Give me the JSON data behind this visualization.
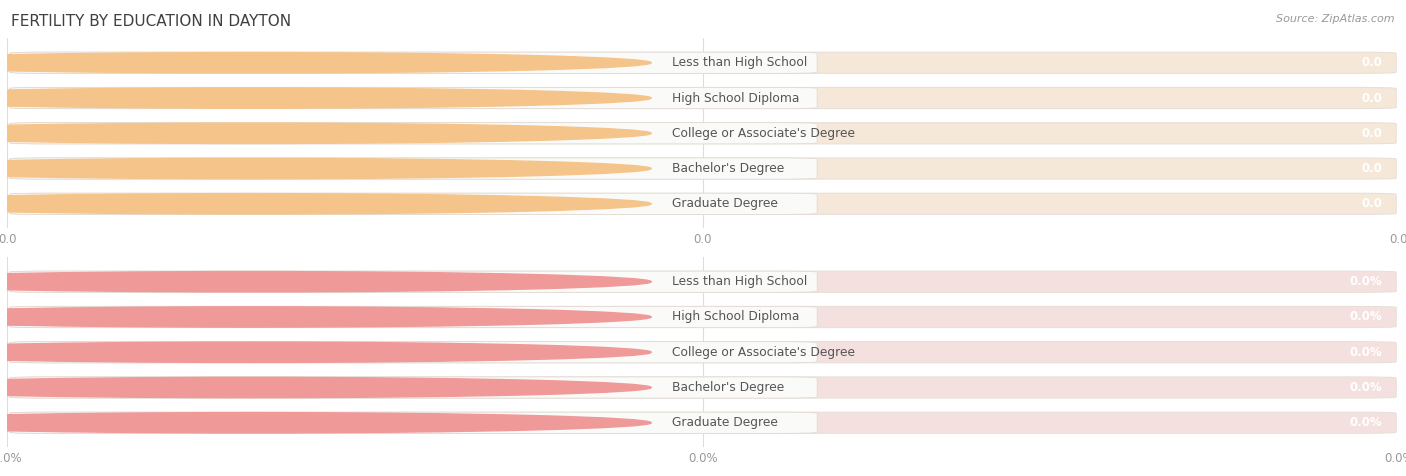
{
  "title": "FERTILITY BY EDUCATION IN DAYTON",
  "source": "Source: ZipAtlas.com",
  "categories": [
    "Less than High School",
    "High School Diploma",
    "College or Associate's Degree",
    "Bachelor's Degree",
    "Graduate Degree"
  ],
  "values_top": [
    0.0,
    0.0,
    0.0,
    0.0,
    0.0
  ],
  "values_bottom": [
    0.0,
    0.0,
    0.0,
    0.0,
    0.0
  ],
  "bar_color_top": "#F5C48A",
  "bar_bg_color_top": "#F5E8D8",
  "label_pill_color_top": "#FAFAF8",
  "bar_color_bottom": "#EF9999",
  "bar_bg_color_bottom": "#F5E0E0",
  "label_pill_color_bottom": "#FAFAF8",
  "text_color": "#555555",
  "title_color": "#404040",
  "bg_color": "#FFFFFF",
  "grid_line_color": "#DDDDDD",
  "tick_label_color": "#999999",
  "value_text_color": "#FFFFFF",
  "top_suffix": "",
  "bottom_suffix": "%",
  "fig_width": 14.06,
  "fig_height": 4.76
}
